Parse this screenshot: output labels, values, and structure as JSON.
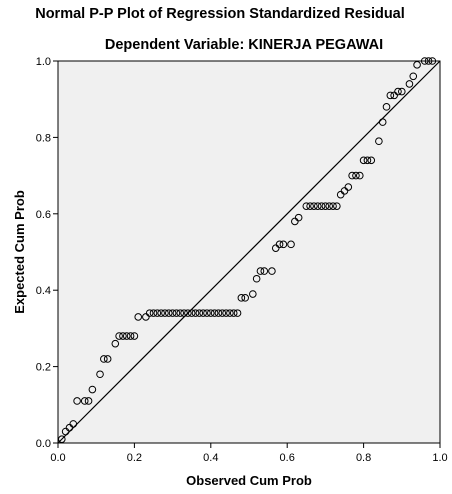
{
  "chart_data": {
    "type": "scatter",
    "title": "Normal P-P Plot of Regression Standardized Residual",
    "subtitle": "Dependent Variable: KINERJA PEGAWAI",
    "xlabel": "Observed Cum Prob",
    "ylabel": "Expected Cum Prob",
    "xlim": [
      0.0,
      1.0
    ],
    "ylim": [
      0.0,
      1.0
    ],
    "xticks": [
      "0.0",
      "0.2",
      "0.4",
      "0.6",
      "0.8",
      "1.0"
    ],
    "yticks": [
      "0.0",
      "0.2",
      "0.4",
      "0.6",
      "0.8",
      "1.0"
    ],
    "grid": false,
    "reference_line": [
      [
        0.0,
        0.0
      ],
      [
        1.0,
        1.0
      ]
    ],
    "points": [
      [
        0.01,
        0.01
      ],
      [
        0.02,
        0.03
      ],
      [
        0.03,
        0.04
      ],
      [
        0.04,
        0.05
      ],
      [
        0.05,
        0.11
      ],
      [
        0.07,
        0.11
      ],
      [
        0.08,
        0.11
      ],
      [
        0.09,
        0.14
      ],
      [
        0.11,
        0.18
      ],
      [
        0.12,
        0.22
      ],
      [
        0.13,
        0.22
      ],
      [
        0.15,
        0.26
      ],
      [
        0.16,
        0.28
      ],
      [
        0.17,
        0.28
      ],
      [
        0.18,
        0.28
      ],
      [
        0.19,
        0.28
      ],
      [
        0.2,
        0.28
      ],
      [
        0.21,
        0.33
      ],
      [
        0.23,
        0.33
      ],
      [
        0.24,
        0.34
      ],
      [
        0.25,
        0.34
      ],
      [
        0.26,
        0.34
      ],
      [
        0.27,
        0.34
      ],
      [
        0.28,
        0.34
      ],
      [
        0.29,
        0.34
      ],
      [
        0.3,
        0.34
      ],
      [
        0.31,
        0.34
      ],
      [
        0.32,
        0.34
      ],
      [
        0.33,
        0.34
      ],
      [
        0.34,
        0.34
      ],
      [
        0.35,
        0.34
      ],
      [
        0.36,
        0.34
      ],
      [
        0.37,
        0.34
      ],
      [
        0.38,
        0.34
      ],
      [
        0.39,
        0.34
      ],
      [
        0.4,
        0.34
      ],
      [
        0.41,
        0.34
      ],
      [
        0.42,
        0.34
      ],
      [
        0.43,
        0.34
      ],
      [
        0.44,
        0.34
      ],
      [
        0.45,
        0.34
      ],
      [
        0.46,
        0.34
      ],
      [
        0.47,
        0.34
      ],
      [
        0.48,
        0.38
      ],
      [
        0.49,
        0.38
      ],
      [
        0.51,
        0.39
      ],
      [
        0.52,
        0.43
      ],
      [
        0.53,
        0.45
      ],
      [
        0.54,
        0.45
      ],
      [
        0.56,
        0.45
      ],
      [
        0.57,
        0.51
      ],
      [
        0.58,
        0.52
      ],
      [
        0.59,
        0.52
      ],
      [
        0.61,
        0.52
      ],
      [
        0.62,
        0.58
      ],
      [
        0.63,
        0.59
      ],
      [
        0.65,
        0.62
      ],
      [
        0.66,
        0.62
      ],
      [
        0.67,
        0.62
      ],
      [
        0.68,
        0.62
      ],
      [
        0.69,
        0.62
      ],
      [
        0.7,
        0.62
      ],
      [
        0.71,
        0.62
      ],
      [
        0.72,
        0.62
      ],
      [
        0.73,
        0.62
      ],
      [
        0.74,
        0.65
      ],
      [
        0.75,
        0.66
      ],
      [
        0.76,
        0.67
      ],
      [
        0.77,
        0.7
      ],
      [
        0.78,
        0.7
      ],
      [
        0.79,
        0.7
      ],
      [
        0.8,
        0.74
      ],
      [
        0.81,
        0.74
      ],
      [
        0.82,
        0.74
      ],
      [
        0.84,
        0.79
      ],
      [
        0.85,
        0.84
      ],
      [
        0.86,
        0.88
      ],
      [
        0.87,
        0.91
      ],
      [
        0.88,
        0.91
      ],
      [
        0.89,
        0.92
      ],
      [
        0.9,
        0.92
      ],
      [
        0.92,
        0.94
      ],
      [
        0.93,
        0.96
      ],
      [
        0.94,
        0.99
      ],
      [
        0.96,
        1.0
      ],
      [
        0.97,
        1.0
      ],
      [
        0.98,
        1.0
      ]
    ]
  },
  "colors": {
    "plot_background": "#f0f0f0",
    "axis": "#000000",
    "marker": "#000000"
  }
}
